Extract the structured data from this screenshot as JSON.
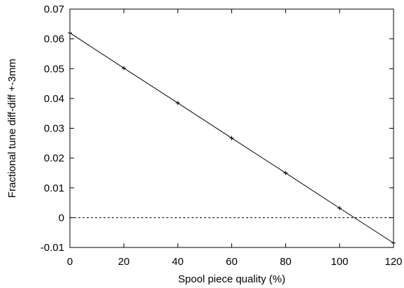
{
  "chart_data": {
    "type": "line",
    "title": "",
    "xlabel": "Spool piece quality (%)",
    "ylabel": "Fractional tune diff-diff +-3mm",
    "xlim": [
      0,
      120
    ],
    "ylim": [
      -0.01,
      0.07
    ],
    "x_ticks": [
      0,
      20,
      40,
      60,
      80,
      100,
      120
    ],
    "x_tick_labels": [
      "0",
      "20",
      "40",
      "60",
      "80",
      "100",
      "120"
    ],
    "y_ticks": [
      -0.01,
      0,
      0.01,
      0.02,
      0.03,
      0.04,
      0.05,
      0.06,
      0.07
    ],
    "y_tick_labels": [
      "-0.01",
      "0",
      "0.01",
      "0.02",
      "0.03",
      "0.04",
      "0.05",
      "0.06",
      "0.07"
    ],
    "grid": false,
    "legend": "none",
    "series": [
      {
        "x": [
          0,
          20,
          40,
          60,
          80,
          100,
          120
        ],
        "y": [
          0.062,
          0.0502,
          0.0385,
          0.0267,
          0.015,
          0.0032,
          -0.0085
        ],
        "line_style": "solid",
        "marker": "plus",
        "color": "#000000"
      }
    ],
    "reference_lines": [
      {
        "y": 0,
        "line_style": "dashed",
        "color": "#000000"
      }
    ]
  }
}
